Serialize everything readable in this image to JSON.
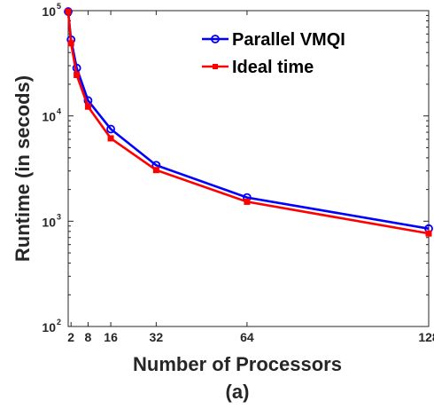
{
  "chart_data": {
    "type": "line",
    "xlabel": "Number of Processors",
    "ylabel": "Runtime (in secods)",
    "caption": "(a)",
    "y_scale": "log",
    "ylim": [
      100,
      100000
    ],
    "xlim": [
      1,
      128
    ],
    "x_ticks": [
      2,
      8,
      16,
      32,
      64,
      128
    ],
    "y_ticks": [
      {
        "value": 100,
        "base": "10",
        "exp": "2"
      },
      {
        "value": 1000,
        "base": "10",
        "exp": "3"
      },
      {
        "value": 10000,
        "base": "10",
        "exp": "4"
      },
      {
        "value": 100000,
        "base": "10",
        "exp": "5"
      }
    ],
    "grid": false,
    "legend_position": "top-right",
    "x": [
      1,
      2,
      4,
      8,
      16,
      32,
      64,
      128
    ],
    "series": [
      {
        "name": "Parallel VMQI",
        "color": "#0000ff",
        "marker": "circle",
        "values": [
          98000,
          53000,
          28500,
          14000,
          7500,
          3400,
          1680,
          850
        ]
      },
      {
        "name": "Ideal time",
        "color": "#ff0000",
        "marker": "square",
        "values": [
          98000,
          49000,
          24500,
          12250,
          6125,
          3060,
          1530,
          765
        ]
      }
    ]
  }
}
